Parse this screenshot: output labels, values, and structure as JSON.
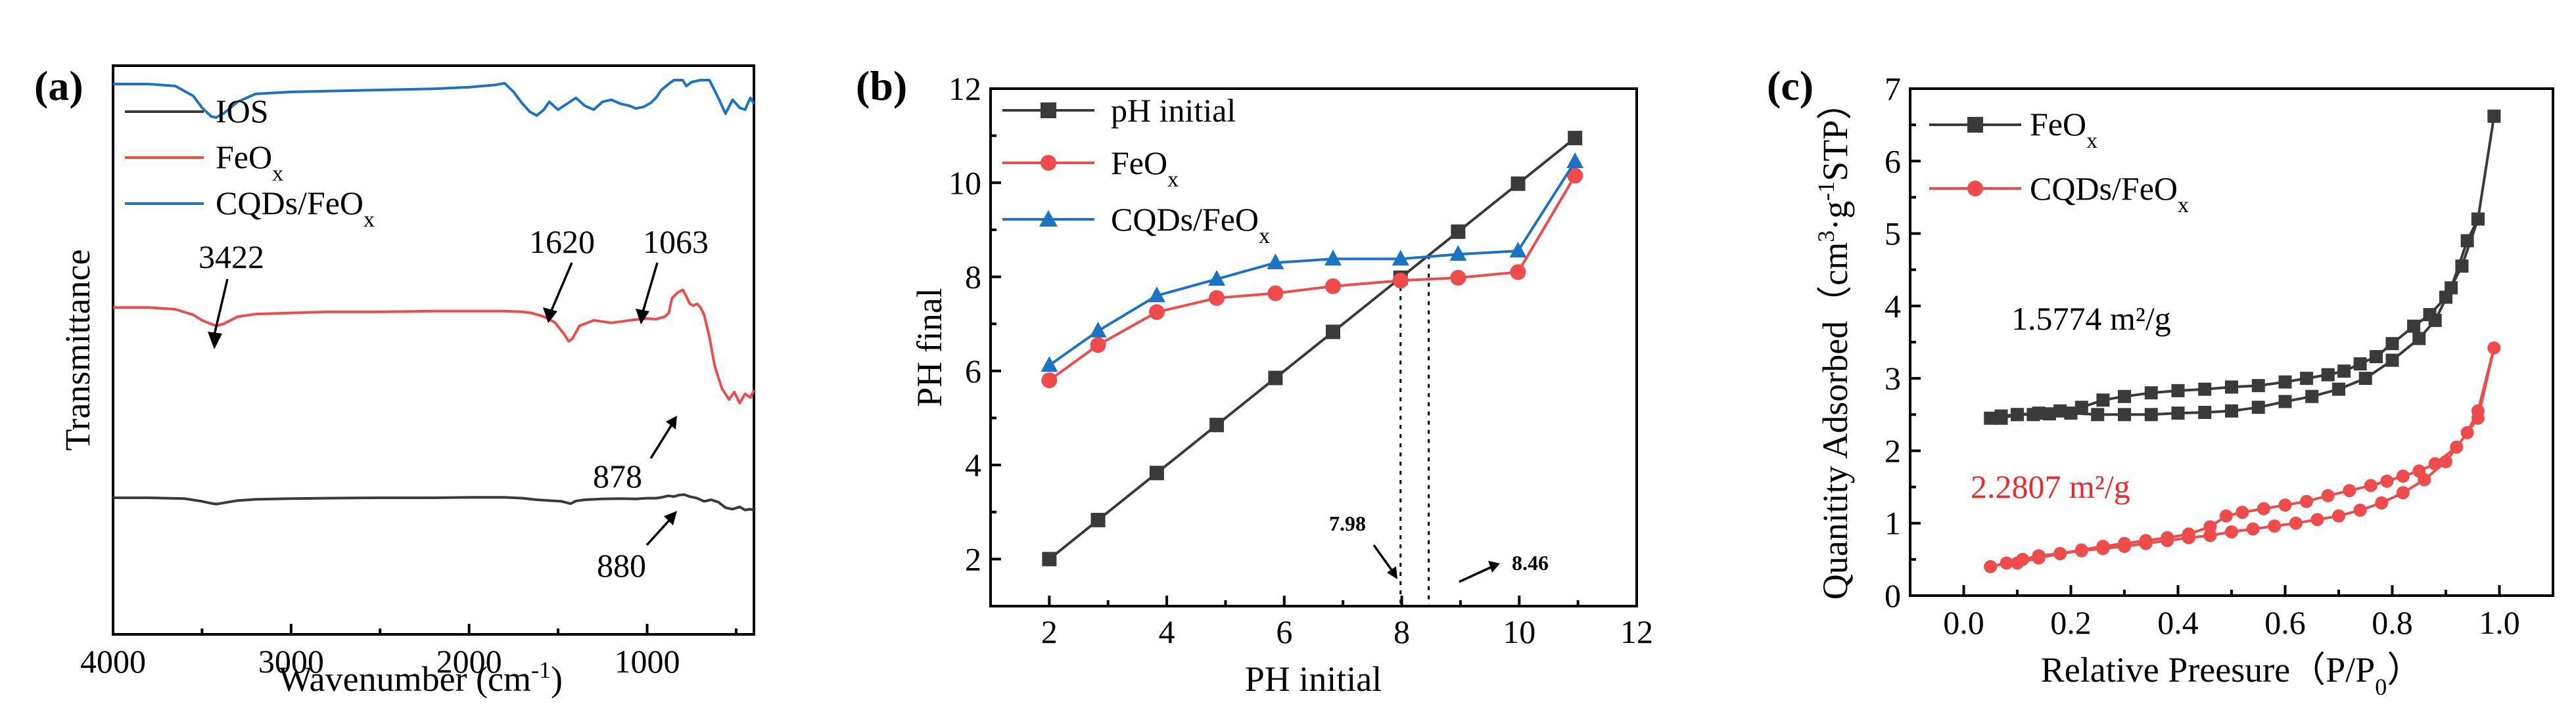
{
  "colors": {
    "black": "#3a3a3a",
    "red": "#ee4b4b",
    "blue": "#1b73c3"
  },
  "chart_data": [
    {
      "type": "line",
      "panel_label": "(a)",
      "xlabel": "Wavenumber (cm⁻¹)",
      "ylabel": "Transmittance",
      "xlim": [
        4000,
        400
      ],
      "xticks": [
        "4000",
        "3000",
        "2000",
        "1000"
      ],
      "series": [
        {
          "name": "IOS",
          "color": "#3a3a3a",
          "x": [
            4000,
            3800,
            3600,
            3500,
            3450,
            3420,
            3380,
            3300,
            3200,
            3000,
            2800,
            2500,
            2200,
            2000,
            1800,
            1700,
            1620,
            1550,
            1480,
            1430,
            1400,
            1350,
            1250,
            1150,
            1063,
            1000,
            950,
            920,
            880,
            850,
            820,
            790,
            760,
            720,
            680,
            640,
            600,
            560,
            520,
            480,
            450,
            420,
            400
          ],
          "y": [
            -0.05,
            -0.05,
            -0.07,
            -0.14,
            -0.19,
            -0.21,
            -0.18,
            -0.12,
            -0.09,
            -0.07,
            -0.06,
            -0.05,
            -0.05,
            -0.04,
            -0.04,
            -0.06,
            -0.1,
            -0.12,
            -0.14,
            -0.2,
            -0.13,
            -0.1,
            -0.08,
            -0.07,
            -0.08,
            -0.06,
            -0.06,
            -0.04,
            0.0,
            -0.02,
            0.02,
            0.03,
            -0.02,
            -0.06,
            -0.14,
            -0.1,
            -0.16,
            -0.3,
            -0.34,
            -0.28,
            -0.36,
            -0.34,
            -0.36
          ]
        },
        {
          "name": "FeOₓ",
          "color": "#ee4b4b",
          "x": [
            4000,
            3800,
            3650,
            3550,
            3500,
            3450,
            3420,
            3380,
            3300,
            3200,
            3000,
            2800,
            2500,
            2200,
            2000,
            1800,
            1700,
            1650,
            1580,
            1520,
            1470,
            1440,
            1420,
            1380,
            1300,
            1200,
            1100,
            1000,
            950,
            900,
            878,
            860,
            830,
            800,
            780,
            760,
            740,
            720,
            700,
            680,
            650,
            620,
            580,
            540,
            510,
            480,
            450,
            420,
            400
          ],
          "y": [
            2.8,
            2.8,
            2.75,
            2.6,
            2.45,
            2.35,
            2.3,
            2.35,
            2.55,
            2.62,
            2.65,
            2.68,
            2.68,
            2.7,
            2.7,
            2.7,
            2.68,
            2.65,
            2.55,
            2.4,
            2.1,
            1.88,
            1.95,
            2.3,
            2.45,
            2.38,
            2.45,
            2.5,
            2.48,
            2.55,
            2.65,
            3.05,
            3.2,
            3.28,
            3.1,
            2.9,
            2.85,
            2.9,
            2.8,
            2.6,
            2.0,
            1.2,
            0.6,
            0.3,
            0.5,
            0.2,
            0.45,
            0.35,
            0.55
          ]
        },
        {
          "name": "CQDs/FeOₓ",
          "color": "#1b73c3",
          "x": [
            4000,
            3800,
            3650,
            3550,
            3500,
            3450,
            3422,
            3380,
            3300,
            3200,
            3000,
            2800,
            2500,
            2200,
            2000,
            1850,
            1800,
            1750,
            1700,
            1660,
            1620,
            1580,
            1550,
            1500,
            1450,
            1400,
            1350,
            1300,
            1250,
            1200,
            1150,
            1100,
            1063,
            1020,
            980,
            950,
            920,
            880,
            850,
            800,
            780,
            750,
            700,
            650,
            600,
            560,
            520,
            480,
            450,
            420,
            400
          ],
          "y": [
            5.2,
            5.2,
            5.15,
            4.9,
            4.6,
            4.38,
            4.35,
            4.45,
            4.75,
            4.95,
            5.0,
            5.02,
            5.05,
            5.08,
            5.12,
            5.18,
            5.22,
            5.0,
            4.7,
            4.5,
            4.4,
            4.55,
            4.75,
            4.55,
            4.7,
            4.85,
            4.65,
            4.55,
            4.75,
            4.8,
            4.7,
            4.65,
            4.58,
            4.62,
            4.72,
            4.85,
            5.05,
            5.2,
            5.3,
            5.3,
            5.15,
            5.25,
            5.3,
            5.3,
            4.85,
            4.45,
            4.8,
            4.6,
            4.55,
            4.85,
            4.7
          ]
        }
      ],
      "annotations": [
        "3422",
        "1620",
        "1063",
        "878",
        "880"
      ]
    },
    {
      "type": "line",
      "panel_label": "(b)",
      "xlabel": "PH initial",
      "ylabel": "PH final",
      "xlim": [
        1,
        12
      ],
      "ylim": [
        1,
        12
      ],
      "xticks": [
        2,
        4,
        6,
        8,
        10,
        12
      ],
      "yticks": [
        2,
        4,
        6,
        8,
        10,
        12
      ],
      "series": [
        {
          "name": "pH initial",
          "color": "#3a3a3a",
          "marker": "square",
          "x": [
            2,
            2.83,
            3.83,
            4.85,
            5.85,
            6.83,
            7.98,
            8.96,
            9.98,
            10.95
          ],
          "y": [
            2,
            2.83,
            3.83,
            4.85,
            5.85,
            6.83,
            7.98,
            8.96,
            9.98,
            10.95
          ]
        },
        {
          "name": "FeOₓ",
          "color": "#ee4b4b",
          "marker": "circle",
          "x": [
            2,
            2.83,
            3.83,
            4.85,
            5.85,
            6.83,
            7.98,
            8.96,
            9.98,
            10.95
          ],
          "y": [
            5.8,
            6.55,
            7.25,
            7.55,
            7.65,
            7.8,
            7.92,
            7.98,
            8.1,
            10.15
          ]
        },
        {
          "name": "CQDs/FeOₓ",
          "color": "#1b73c3",
          "marker": "triangle",
          "x": [
            2,
            2.83,
            3.83,
            4.85,
            5.85,
            6.83,
            7.98,
            8.96,
            9.98,
            10.95
          ],
          "y": [
            6.12,
            6.85,
            7.6,
            7.95,
            8.3,
            8.38,
            8.38,
            8.48,
            8.55,
            10.45
          ]
        }
      ],
      "annotations": [
        "7.98",
        "8.46"
      ]
    },
    {
      "type": "line",
      "panel_label": "(c)",
      "xlabel": "Relative Preesure（P/P₀）",
      "ylabel": "Quanitity Adsorbed（cm³·g⁻¹STP）",
      "xlim": [
        -0.1,
        1.1
      ],
      "ylim": [
        0,
        7
      ],
      "xticks": [
        "0.0",
        "0.2",
        "0.4",
        "0.6",
        "0.8",
        "1.0"
      ],
      "yticks": [
        0,
        1,
        2,
        3,
        4,
        5,
        6,
        7
      ],
      "series": [
        {
          "name": "FeOₓ",
          "color": "#3a3a3a",
          "marker": "square",
          "x": [
            0.05,
            0.07,
            0.1,
            0.13,
            0.16,
            0.2,
            0.25,
            0.3,
            0.35,
            0.4,
            0.45,
            0.5,
            0.55,
            0.6,
            0.65,
            0.7,
            0.75,
            0.8,
            0.85,
            0.88,
            0.91,
            0.94,
            0.96,
            0.99,
            0.96,
            0.93,
            0.9,
            0.87,
            0.84,
            0.8,
            0.77,
            0.74,
            0.71,
            0.68,
            0.64,
            0.6,
            0.55,
            0.5,
            0.45,
            0.4,
            0.35,
            0.3,
            0.26,
            0.22,
            0.18,
            0.14,
            0.1,
            0.07
          ],
          "y": [
            2.45,
            2.48,
            2.5,
            2.5,
            2.51,
            2.52,
            2.5,
            2.5,
            2.5,
            2.52,
            2.53,
            2.55,
            2.6,
            2.68,
            2.75,
            2.85,
            3.0,
            3.25,
            3.55,
            3.8,
            4.25,
            4.9,
            5.2,
            6.62,
            5.2,
            4.55,
            4.12,
            3.88,
            3.72,
            3.48,
            3.3,
            3.2,
            3.1,
            3.05,
            3.0,
            2.95,
            2.9,
            2.88,
            2.85,
            2.83,
            2.8,
            2.75,
            2.7,
            2.6,
            2.55,
            2.52,
            2.5,
            2.45
          ]
        },
        {
          "name": "CQDs/FeOₓ",
          "color": "#ee4b4b",
          "marker": "circle",
          "x": [
            0.05,
            0.08,
            0.11,
            0.14,
            0.18,
            0.22,
            0.26,
            0.3,
            0.34,
            0.38,
            0.42,
            0.46,
            0.5,
            0.54,
            0.58,
            0.62,
            0.66,
            0.7,
            0.74,
            0.78,
            0.82,
            0.86,
            0.9,
            0.94,
            0.96,
            0.99,
            0.96,
            0.92,
            0.88,
            0.85,
            0.82,
            0.79,
            0.76,
            0.72,
            0.68,
            0.64,
            0.6,
            0.56,
            0.52,
            0.49,
            0.46,
            0.42,
            0.38,
            0.34,
            0.3,
            0.26,
            0.22,
            0.18,
            0.14,
            0.1
          ],
          "y": [
            0.4,
            0.45,
            0.5,
            0.55,
            0.58,
            0.62,
            0.65,
            0.68,
            0.72,
            0.76,
            0.8,
            0.83,
            0.88,
            0.92,
            0.96,
            1.0,
            1.05,
            1.1,
            1.18,
            1.28,
            1.42,
            1.6,
            1.85,
            2.25,
            2.55,
            3.42,
            2.45,
            2.05,
            1.82,
            1.72,
            1.65,
            1.58,
            1.52,
            1.45,
            1.38,
            1.3,
            1.25,
            1.2,
            1.15,
            1.1,
            0.95,
            0.85,
            0.8,
            0.76,
            0.72,
            0.68,
            0.63,
            0.58,
            0.52,
            0.45
          ]
        }
      ],
      "annotations": [
        "1.5774 m²/g",
        "2.2807 m²/g"
      ]
    }
  ]
}
